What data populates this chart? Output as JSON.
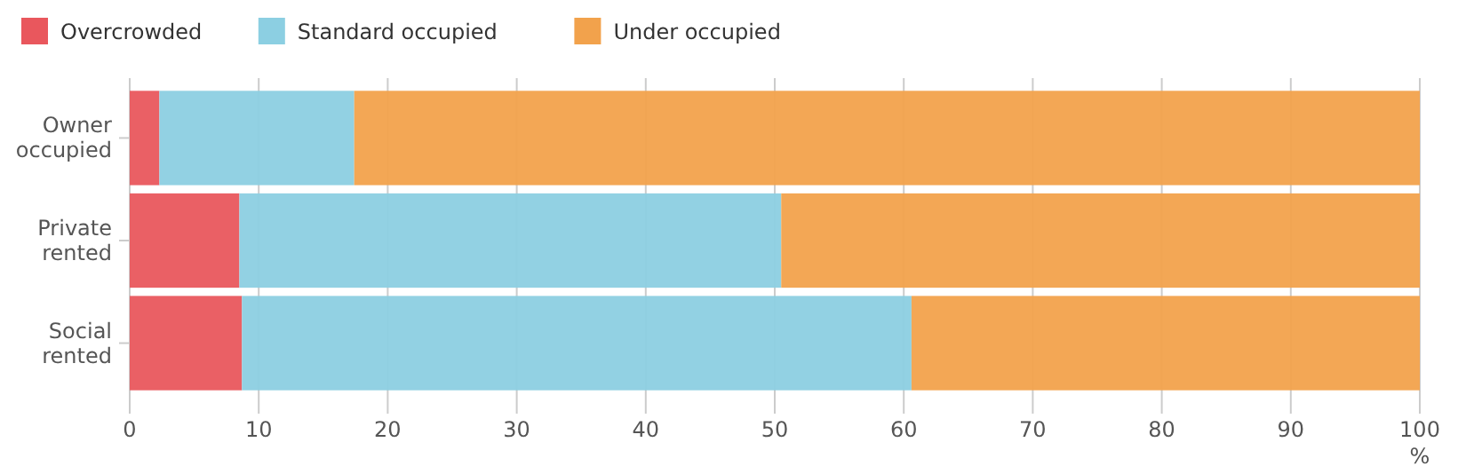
{
  "chart_data": {
    "type": "bar",
    "orientation": "horizontal",
    "stacked": true,
    "categories": [
      "Owner\noccupied",
      "Private\nrented",
      "Social\nrented"
    ],
    "series": [
      {
        "name": "Overcrowded",
        "color": "#e9575d",
        "values": [
          2.3,
          8.5,
          8.7
        ]
      },
      {
        "name": "Standard occupied",
        "color": "#8ccfe2",
        "values": [
          15.1,
          42.0,
          51.9
        ]
      },
      {
        "name": "Under occupied",
        "color": "#f2a24c",
        "values": [
          82.6,
          49.5,
          39.4
        ]
      }
    ],
    "xlim": [
      0,
      100
    ],
    "xticks": [
      0,
      10,
      20,
      30,
      40,
      50,
      60,
      70,
      80,
      90,
      100
    ],
    "xlabel": "%",
    "grid": "x",
    "legend": "top left"
  }
}
